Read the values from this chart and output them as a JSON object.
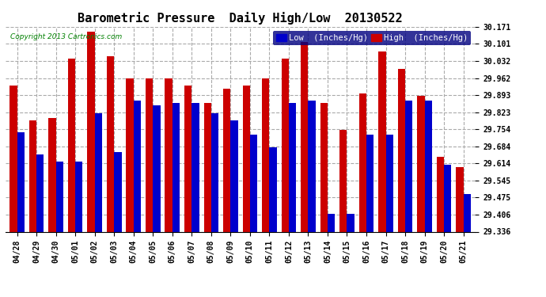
{
  "title": "Barometric Pressure  Daily High/Low  20130522",
  "copyright": "Copyright 2013 Cartronics.com",
  "legend_low": "Low  (Inches/Hg)",
  "legend_high": "High  (Inches/Hg)",
  "categories": [
    "04/28",
    "04/29",
    "04/30",
    "05/01",
    "05/02",
    "05/03",
    "05/04",
    "05/05",
    "05/06",
    "05/07",
    "05/08",
    "05/09",
    "05/10",
    "05/11",
    "05/12",
    "05/13",
    "05/14",
    "05/15",
    "05/16",
    "05/17",
    "05/18",
    "05/19",
    "05/20",
    "05/21"
  ],
  "low_values": [
    29.74,
    29.65,
    29.62,
    29.62,
    29.82,
    29.66,
    29.87,
    29.85,
    29.86,
    29.86,
    29.82,
    29.79,
    29.73,
    29.68,
    29.86,
    29.87,
    29.41,
    29.41,
    29.73,
    29.73,
    29.87,
    29.87,
    29.61,
    29.49
  ],
  "high_values": [
    29.93,
    29.79,
    29.8,
    30.04,
    30.15,
    30.05,
    29.96,
    29.96,
    29.96,
    29.93,
    29.86,
    29.92,
    29.93,
    29.96,
    30.04,
    30.11,
    29.86,
    29.75,
    29.9,
    30.07,
    30.0,
    29.89,
    29.64,
    29.6
  ],
  "ymin": 29.336,
  "ymax": 30.171,
  "yticks": [
    29.336,
    29.406,
    29.475,
    29.545,
    29.614,
    29.684,
    29.754,
    29.823,
    29.893,
    29.962,
    30.032,
    30.101,
    30.171
  ],
  "bar_width": 0.38,
  "low_color": "#0000cc",
  "high_color": "#cc0000",
  "bg_color": "#ffffff",
  "grid_color": "#aaaaaa",
  "title_fontsize": 11,
  "tick_fontsize": 7,
  "legend_fontsize": 7.5
}
